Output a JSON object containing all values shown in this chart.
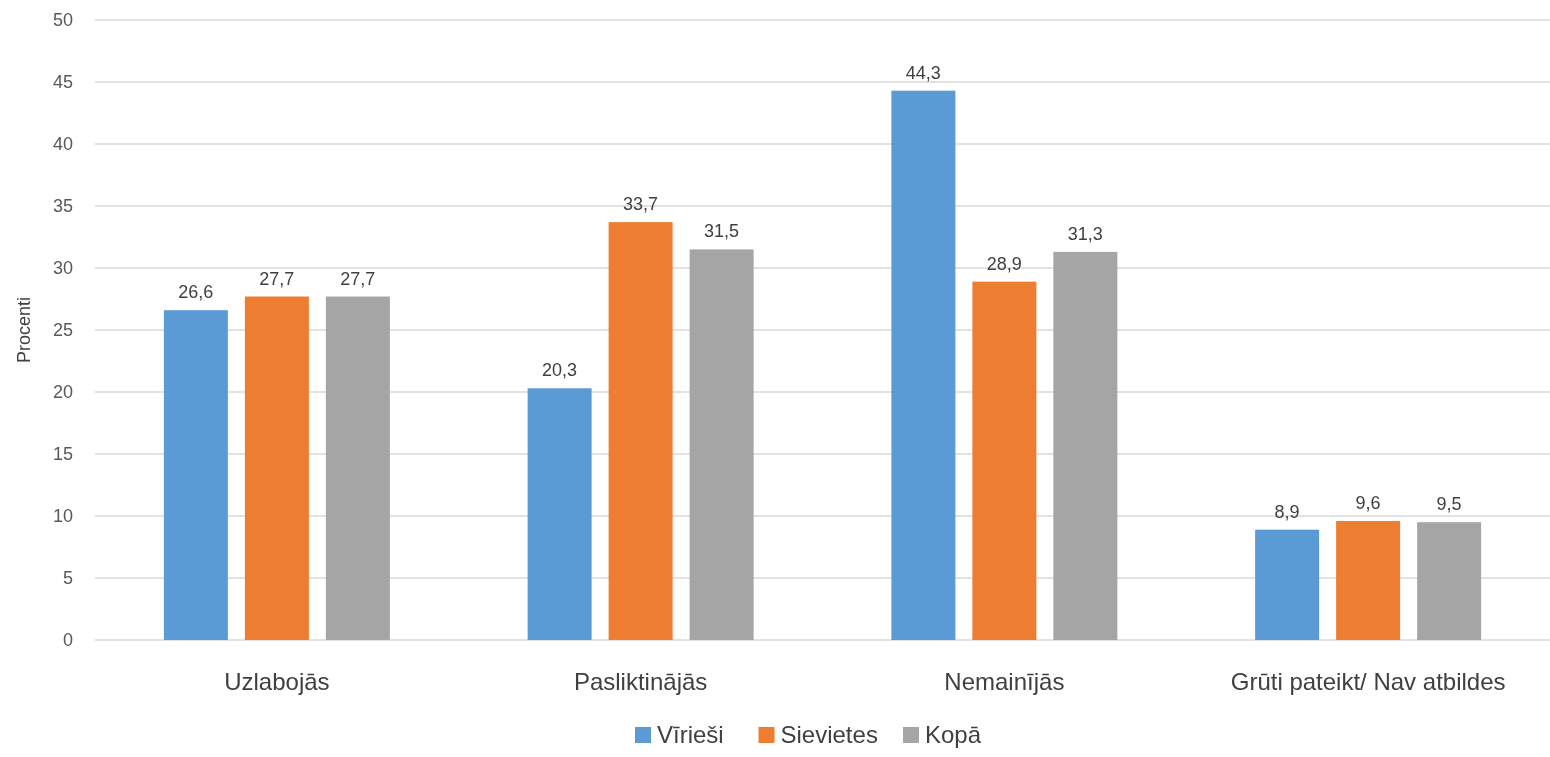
{
  "chart_data": {
    "type": "bar",
    "ylabel": "Procenti",
    "categories": [
      "Uzlabojās",
      "Pasliktinājās",
      "Nemainījās",
      "Grūti pateikt/ Nav atbildes"
    ],
    "series": [
      {
        "name": "Vīrieši",
        "color": "#5b9bd5",
        "values": [
          26.6,
          20.3,
          44.3,
          8.9
        ],
        "value_labels": [
          "26,6",
          "20,3",
          "44,3",
          "8,9"
        ]
      },
      {
        "name": "Sievietes",
        "color": "#ed7d31",
        "values": [
          27.7,
          33.7,
          28.9,
          9.6
        ],
        "value_labels": [
          "27,7",
          "33,7",
          "28,9",
          "9,6"
        ]
      },
      {
        "name": "Kopā",
        "color": "#a5a5a5",
        "values": [
          27.7,
          31.5,
          31.3,
          9.5
        ],
        "value_labels": [
          "27,7",
          "31,5",
          "31,3",
          "9,5"
        ]
      }
    ],
    "ylim": [
      0,
      50
    ],
    "yticks": [
      0,
      5,
      10,
      15,
      20,
      25,
      30,
      35,
      40,
      45,
      50
    ],
    "grid": "y",
    "legend": "bottom"
  }
}
